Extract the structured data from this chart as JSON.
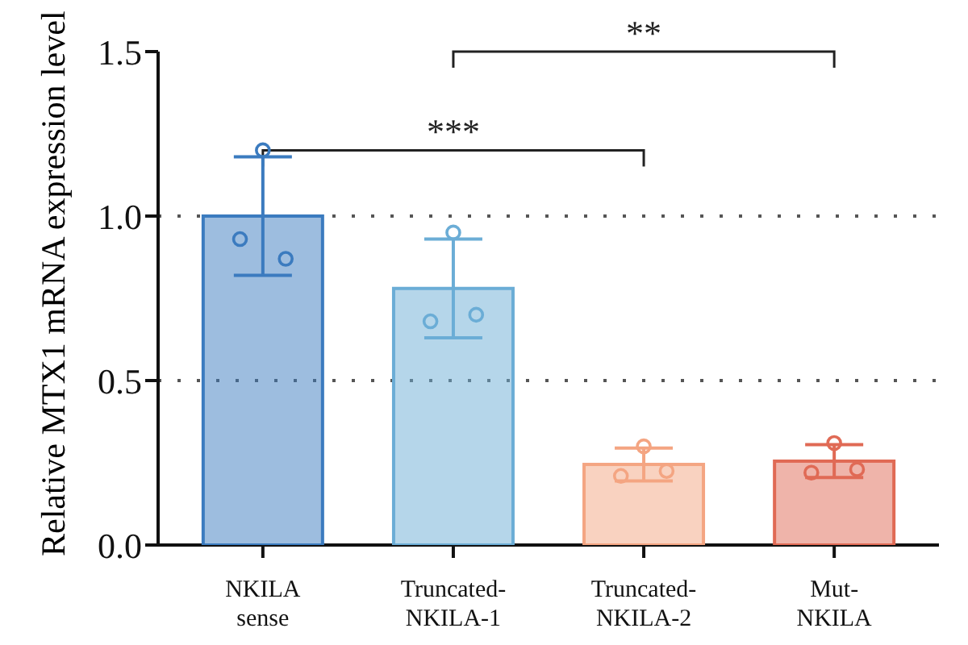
{
  "chart_data": {
    "type": "bar",
    "ylabel": "Relative MTX1 mRNA expression level",
    "categories": [
      "NKILA sense",
      "Truncated-NKILA-1",
      "Truncated-NKILA-2",
      "Mut-NKILA"
    ],
    "values": [
      1.0,
      0.78,
      0.245,
      0.255
    ],
    "errors": [
      0.18,
      0.15,
      0.05,
      0.05
    ],
    "colors": [
      "#3b7bbf",
      "#6badd6",
      "#f4a582",
      "#e06a55"
    ],
    "series": [
      {
        "type": "scatter",
        "colors": [
          "#3b7bbf",
          "#3b7bbf",
          "#3b7bbf",
          "#6badd6",
          "#6badd6",
          "#6badd6",
          "#f4a582",
          "#f4a582",
          "#f4a582",
          "#e06a55",
          "#e06a55",
          "#e06a55"
        ],
        "x": [
          "NKILA sense",
          "NKILA sense",
          "NKILA sense",
          "Truncated-NKILA-1",
          "Truncated-NKILA-1",
          "Truncated-NKILA-1",
          "Truncated-NKILA-2",
          "Truncated-NKILA-2",
          "Truncated-NKILA-2",
          "Mut-NKILA",
          "Mut-NKILA",
          "Mut-NKILA"
        ],
        "values": [
          1.2,
          0.93,
          0.87,
          0.95,
          0.68,
          0.7,
          0.3,
          0.21,
          0.225,
          0.31,
          0.22,
          0.23
        ]
      }
    ],
    "ylim": [
      0,
      1.5
    ],
    "yticks": [
      {
        "value": 0,
        "label": "0.0"
      },
      0.5,
      {
        "value": 1,
        "label": "1.0"
      },
      1.5
    ],
    "grid": "y",
    "marker": "circle",
    "annotations": [
      "***",
      "**"
    ]
  }
}
